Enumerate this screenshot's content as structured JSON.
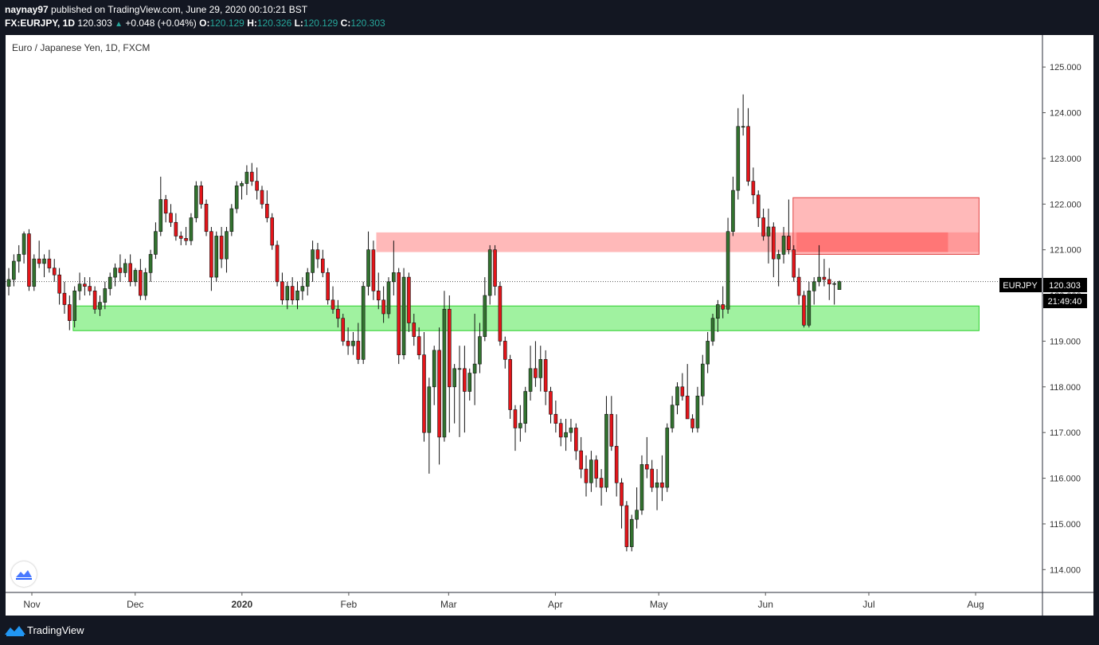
{
  "header": {
    "publisher": "naynay97",
    "published_text": "published on TradingView.com, June 29, 2020 00:10:21 BST",
    "symbol_line": "FX:EURJPY, 1D",
    "last": "120.303",
    "change": "+0.048 (+0.04%)",
    "o_label": "O:",
    "o_value": "120.129",
    "h_label": "H:",
    "h_value": "120.326",
    "l_label": "L:",
    "l_value": "120.129",
    "c_label": "C:",
    "c_value": "120.303"
  },
  "footer": {
    "brand": "TradingView"
  },
  "icons": {
    "logo": "tradingview-logo-icon",
    "corner": "tradingview-corner-icon",
    "up": "up-triangle-icon"
  },
  "colors": {
    "up": "#26a69a",
    "bull_candle": "#32722f",
    "bear_candle": "#e3151a",
    "zone_red": "#ff7070",
    "zone_green": "#8ff08f"
  },
  "chart_data": {
    "type": "candlestick",
    "title": "Euro / Japanese Yen, 1D, FXCM",
    "symbol_tag": "EURJPY",
    "last_price": 120.303,
    "countdown": "21:49:40",
    "ylim": [
      113.5,
      125.7
    ],
    "y_ticks": [
      "114.000",
      "115.000",
      "116.000",
      "117.000",
      "118.000",
      "119.000",
      "120.000",
      "121.000",
      "122.000",
      "123.000",
      "124.000",
      "125.000"
    ],
    "x_labels": [
      "Nov",
      "Dec",
      "2020",
      "Feb",
      "Mar",
      "Apr",
      "May",
      "Jun",
      "Jul",
      "Aug"
    ],
    "x_label_bold": "2020",
    "x_label_days": [
      0,
      30,
      61,
      92,
      121,
      152,
      182,
      213,
      243,
      274
    ],
    "zones": [
      {
        "kind": "supply",
        "start_day": 100,
        "end_day": 275,
        "low": 120.95,
        "high": 121.38
      },
      {
        "kind": "supply",
        "start_day": 221,
        "end_day": 275,
        "low": 120.9,
        "high": 122.14
      },
      {
        "kind": "supply-inner",
        "start_day": 222,
        "end_day": 266,
        "low": 120.95,
        "high": 121.38
      },
      {
        "kind": "demand",
        "start_day": 12,
        "end_day": 275,
        "low": 119.23,
        "high": 119.77
      }
    ],
    "candles": [
      {
        "o": 120.2,
        "h": 120.6,
        "l": 120.0,
        "c": 120.35
      },
      {
        "o": 120.35,
        "h": 120.9,
        "l": 120.2,
        "c": 120.75
      },
      {
        "o": 120.75,
        "h": 121.1,
        "l": 120.5,
        "c": 120.9
      },
      {
        "o": 120.9,
        "h": 121.4,
        "l": 120.7,
        "c": 121.35
      },
      {
        "o": 121.35,
        "h": 121.45,
        "l": 120.1,
        "c": 120.2
      },
      {
        "o": 120.2,
        "h": 120.9,
        "l": 120.1,
        "c": 120.8
      },
      {
        "o": 120.8,
        "h": 121.2,
        "l": 120.6,
        "c": 120.7
      },
      {
        "o": 120.7,
        "h": 120.9,
        "l": 120.4,
        "c": 120.8
      },
      {
        "o": 120.8,
        "h": 121.0,
        "l": 120.5,
        "c": 120.6
      },
      {
        "o": 120.6,
        "h": 120.8,
        "l": 120.3,
        "c": 120.45
      },
      {
        "o": 120.45,
        "h": 120.6,
        "l": 119.8,
        "c": 120.05
      },
      {
        "o": 120.05,
        "h": 120.3,
        "l": 119.6,
        "c": 119.8
      },
      {
        "o": 119.8,
        "h": 120.0,
        "l": 119.24,
        "c": 119.45
      },
      {
        "o": 119.45,
        "h": 120.2,
        "l": 119.3,
        "c": 120.1
      },
      {
        "o": 120.1,
        "h": 120.5,
        "l": 119.9,
        "c": 120.25
      },
      {
        "o": 120.25,
        "h": 120.4,
        "l": 120.0,
        "c": 120.2
      },
      {
        "o": 120.2,
        "h": 120.4,
        "l": 120.0,
        "c": 120.1
      },
      {
        "o": 120.1,
        "h": 120.2,
        "l": 119.6,
        "c": 119.7
      },
      {
        "o": 119.7,
        "h": 120.0,
        "l": 119.55,
        "c": 119.85
      },
      {
        "o": 119.85,
        "h": 120.3,
        "l": 119.7,
        "c": 120.15
      },
      {
        "o": 120.15,
        "h": 120.5,
        "l": 120.0,
        "c": 120.4
      },
      {
        "o": 120.4,
        "h": 120.7,
        "l": 120.2,
        "c": 120.6
      },
      {
        "o": 120.6,
        "h": 120.9,
        "l": 120.3,
        "c": 120.5
      },
      {
        "o": 120.5,
        "h": 120.8,
        "l": 120.4,
        "c": 120.7
      },
      {
        "o": 120.7,
        "h": 120.9,
        "l": 120.2,
        "c": 120.3
      },
      {
        "o": 120.3,
        "h": 120.6,
        "l": 120.2,
        "c": 120.55
      },
      {
        "o": 120.55,
        "h": 120.8,
        "l": 119.9,
        "c": 120.0
      },
      {
        "o": 120.0,
        "h": 120.6,
        "l": 119.9,
        "c": 120.5
      },
      {
        "o": 120.5,
        "h": 121.0,
        "l": 120.3,
        "c": 120.9
      },
      {
        "o": 120.9,
        "h": 121.6,
        "l": 120.8,
        "c": 121.4
      },
      {
        "o": 121.4,
        "h": 122.6,
        "l": 121.3,
        "c": 122.1
      },
      {
        "o": 122.1,
        "h": 122.2,
        "l": 121.6,
        "c": 121.8
      },
      {
        "o": 121.8,
        "h": 122.0,
        "l": 121.5,
        "c": 121.6
      },
      {
        "o": 121.6,
        "h": 121.8,
        "l": 121.2,
        "c": 121.3
      },
      {
        "o": 121.3,
        "h": 121.4,
        "l": 121.1,
        "c": 121.25
      },
      {
        "o": 121.25,
        "h": 121.5,
        "l": 121.1,
        "c": 121.2
      },
      {
        "o": 121.2,
        "h": 121.8,
        "l": 121.1,
        "c": 121.7
      },
      {
        "o": 121.7,
        "h": 122.5,
        "l": 121.6,
        "c": 122.4
      },
      {
        "o": 122.4,
        "h": 122.5,
        "l": 121.9,
        "c": 122.0
      },
      {
        "o": 122.0,
        "h": 122.1,
        "l": 121.3,
        "c": 121.4
      },
      {
        "o": 121.4,
        "h": 121.5,
        "l": 120.1,
        "c": 120.4
      },
      {
        "o": 120.4,
        "h": 121.4,
        "l": 120.3,
        "c": 121.3
      },
      {
        "o": 121.3,
        "h": 121.5,
        "l": 120.6,
        "c": 120.8
      },
      {
        "o": 120.8,
        "h": 121.5,
        "l": 120.5,
        "c": 121.4
      },
      {
        "o": 121.4,
        "h": 122.0,
        "l": 121.3,
        "c": 121.9
      },
      {
        "o": 121.9,
        "h": 122.5,
        "l": 121.8,
        "c": 122.4
      },
      {
        "o": 122.4,
        "h": 122.5,
        "l": 122.1,
        "c": 122.45
      },
      {
        "o": 122.45,
        "h": 122.85,
        "l": 122.2,
        "c": 122.7
      },
      {
        "o": 122.7,
        "h": 122.9,
        "l": 122.4,
        "c": 122.5
      },
      {
        "o": 122.5,
        "h": 122.8,
        "l": 122.1,
        "c": 122.3
      },
      {
        "o": 122.3,
        "h": 122.4,
        "l": 121.9,
        "c": 122.0
      },
      {
        "o": 122.0,
        "h": 122.3,
        "l": 121.6,
        "c": 121.7
      },
      {
        "o": 121.7,
        "h": 121.8,
        "l": 121.0,
        "c": 121.1
      },
      {
        "o": 121.1,
        "h": 121.2,
        "l": 120.2,
        "c": 120.3
      },
      {
        "o": 120.3,
        "h": 120.5,
        "l": 119.8,
        "c": 119.9
      },
      {
        "o": 119.9,
        "h": 120.3,
        "l": 119.7,
        "c": 120.2
      },
      {
        "o": 120.2,
        "h": 120.4,
        "l": 119.8,
        "c": 119.9
      },
      {
        "o": 119.9,
        "h": 120.3,
        "l": 119.7,
        "c": 120.1
      },
      {
        "o": 120.1,
        "h": 120.4,
        "l": 119.9,
        "c": 120.2
      },
      {
        "o": 120.2,
        "h": 120.6,
        "l": 120.0,
        "c": 120.5
      },
      {
        "o": 120.5,
        "h": 121.2,
        "l": 120.3,
        "c": 121.0
      },
      {
        "o": 121.0,
        "h": 121.15,
        "l": 120.6,
        "c": 120.8
      },
      {
        "o": 120.8,
        "h": 121.0,
        "l": 120.4,
        "c": 120.5
      },
      {
        "o": 120.5,
        "h": 120.6,
        "l": 119.8,
        "c": 119.9
      },
      {
        "o": 119.9,
        "h": 120.2,
        "l": 119.6,
        "c": 119.7
      },
      {
        "o": 119.7,
        "h": 119.9,
        "l": 119.3,
        "c": 119.5
      },
      {
        "o": 119.5,
        "h": 119.6,
        "l": 118.9,
        "c": 119.0
      },
      {
        "o": 119.0,
        "h": 119.3,
        "l": 118.7,
        "c": 118.9
      },
      {
        "o": 118.9,
        "h": 119.2,
        "l": 118.7,
        "c": 119.0
      },
      {
        "o": 119.0,
        "h": 119.4,
        "l": 118.5,
        "c": 118.6
      },
      {
        "o": 118.6,
        "h": 120.3,
        "l": 118.5,
        "c": 120.2
      },
      {
        "o": 120.2,
        "h": 121.4,
        "l": 120.0,
        "c": 121.0
      },
      {
        "o": 121.0,
        "h": 121.2,
        "l": 119.9,
        "c": 120.1
      },
      {
        "o": 120.1,
        "h": 120.5,
        "l": 119.7,
        "c": 119.9
      },
      {
        "o": 119.9,
        "h": 120.2,
        "l": 119.4,
        "c": 119.6
      },
      {
        "o": 119.6,
        "h": 120.4,
        "l": 119.5,
        "c": 120.3
      },
      {
        "o": 120.3,
        "h": 121.2,
        "l": 120.0,
        "c": 120.5
      },
      {
        "o": 120.5,
        "h": 120.6,
        "l": 118.5,
        "c": 118.7
      },
      {
        "o": 118.7,
        "h": 120.6,
        "l": 118.6,
        "c": 120.4
      },
      {
        "o": 120.4,
        "h": 120.5,
        "l": 119.2,
        "c": 119.4
      },
      {
        "o": 119.4,
        "h": 119.6,
        "l": 118.9,
        "c": 119.1
      },
      {
        "o": 119.1,
        "h": 119.3,
        "l": 118.6,
        "c": 118.7
      },
      {
        "o": 118.7,
        "h": 119.2,
        "l": 116.8,
        "c": 117.0
      },
      {
        "o": 117.0,
        "h": 118.2,
        "l": 116.1,
        "c": 118.0
      },
      {
        "o": 118.0,
        "h": 118.9,
        "l": 117.6,
        "c": 118.8
      },
      {
        "o": 118.8,
        "h": 119.3,
        "l": 116.3,
        "c": 116.9
      },
      {
        "o": 116.9,
        "h": 120.1,
        "l": 116.8,
        "c": 119.7
      },
      {
        "o": 119.7,
        "h": 120.0,
        "l": 117.0,
        "c": 118.0
      },
      {
        "o": 118.0,
        "h": 118.5,
        "l": 117.2,
        "c": 118.4
      },
      {
        "o": 118.4,
        "h": 118.9,
        "l": 116.9,
        "c": 118.4
      },
      {
        "o": 118.4,
        "h": 118.9,
        "l": 117.0,
        "c": 117.9
      },
      {
        "o": 117.9,
        "h": 118.4,
        "l": 117.7,
        "c": 118.3
      },
      {
        "o": 118.3,
        "h": 119.6,
        "l": 117.6,
        "c": 118.5
      },
      {
        "o": 118.5,
        "h": 119.4,
        "l": 118.3,
        "c": 119.1
      },
      {
        "o": 119.1,
        "h": 120.4,
        "l": 119.0,
        "c": 120.0
      },
      {
        "o": 120.0,
        "h": 121.1,
        "l": 119.8,
        "c": 121.0
      },
      {
        "o": 121.0,
        "h": 121.1,
        "l": 120.0,
        "c": 120.2
      },
      {
        "o": 120.2,
        "h": 120.3,
        "l": 118.9,
        "c": 119.0
      },
      {
        "o": 119.0,
        "h": 119.1,
        "l": 118.4,
        "c": 118.6
      },
      {
        "o": 118.6,
        "h": 118.7,
        "l": 117.3,
        "c": 117.5
      },
      {
        "o": 117.5,
        "h": 117.6,
        "l": 116.6,
        "c": 117.1
      },
      {
        "o": 117.1,
        "h": 117.6,
        "l": 116.8,
        "c": 117.2
      },
      {
        "o": 117.2,
        "h": 118.0,
        "l": 117.0,
        "c": 117.9
      },
      {
        "o": 117.9,
        "h": 118.9,
        "l": 117.7,
        "c": 118.4
      },
      {
        "o": 118.4,
        "h": 119.0,
        "l": 118.0,
        "c": 118.2
      },
      {
        "o": 118.2,
        "h": 118.9,
        "l": 117.9,
        "c": 118.6
      },
      {
        "o": 118.6,
        "h": 118.8,
        "l": 117.6,
        "c": 117.9
      },
      {
        "o": 117.9,
        "h": 118.0,
        "l": 117.2,
        "c": 117.4
      },
      {
        "o": 117.4,
        "h": 117.7,
        "l": 117.0,
        "c": 117.2
      },
      {
        "o": 117.2,
        "h": 117.3,
        "l": 116.7,
        "c": 116.9
      },
      {
        "o": 116.9,
        "h": 117.3,
        "l": 116.6,
        "c": 117.0
      },
      {
        "o": 117.0,
        "h": 117.3,
        "l": 116.8,
        "c": 117.1
      },
      {
        "o": 117.1,
        "h": 117.2,
        "l": 116.4,
        "c": 116.6
      },
      {
        "o": 116.6,
        "h": 116.9,
        "l": 116.0,
        "c": 116.2
      },
      {
        "o": 116.2,
        "h": 116.5,
        "l": 115.6,
        "c": 115.9
      },
      {
        "o": 115.9,
        "h": 116.6,
        "l": 115.7,
        "c": 116.4
      },
      {
        "o": 116.4,
        "h": 116.5,
        "l": 115.8,
        "c": 116.0
      },
      {
        "o": 116.0,
        "h": 116.2,
        "l": 115.4,
        "c": 115.8
      },
      {
        "o": 115.8,
        "h": 117.8,
        "l": 115.7,
        "c": 117.4
      },
      {
        "o": 117.4,
        "h": 117.8,
        "l": 116.6,
        "c": 116.7
      },
      {
        "o": 116.7,
        "h": 117.4,
        "l": 115.6,
        "c": 115.9
      },
      {
        "o": 115.9,
        "h": 116.0,
        "l": 114.9,
        "c": 115.4
      },
      {
        "o": 115.4,
        "h": 115.5,
        "l": 114.4,
        "c": 114.5
      },
      {
        "o": 114.5,
        "h": 115.2,
        "l": 114.4,
        "c": 115.1
      },
      {
        "o": 115.1,
        "h": 115.8,
        "l": 114.9,
        "c": 115.3
      },
      {
        "o": 115.3,
        "h": 116.5,
        "l": 115.2,
        "c": 116.3
      },
      {
        "o": 116.3,
        "h": 116.9,
        "l": 116.0,
        "c": 116.2
      },
      {
        "o": 116.2,
        "h": 116.4,
        "l": 115.7,
        "c": 115.8
      },
      {
        "o": 115.8,
        "h": 116.2,
        "l": 115.3,
        "c": 115.9
      },
      {
        "o": 115.9,
        "h": 116.5,
        "l": 115.5,
        "c": 115.8
      },
      {
        "o": 115.8,
        "h": 117.2,
        "l": 115.7,
        "c": 117.1
      },
      {
        "o": 117.1,
        "h": 117.8,
        "l": 117.0,
        "c": 117.6
      },
      {
        "o": 117.6,
        "h": 118.1,
        "l": 117.4,
        "c": 118.0
      },
      {
        "o": 118.0,
        "h": 118.3,
        "l": 117.7,
        "c": 117.8
      },
      {
        "o": 117.8,
        "h": 118.5,
        "l": 117.3,
        "c": 117.3
      },
      {
        "o": 117.3,
        "h": 117.4,
        "l": 117.0,
        "c": 117.1
      },
      {
        "o": 117.1,
        "h": 118.0,
        "l": 117.0,
        "c": 117.8
      },
      {
        "o": 117.8,
        "h": 118.7,
        "l": 117.6,
        "c": 118.5
      },
      {
        "o": 118.5,
        "h": 119.2,
        "l": 118.3,
        "c": 119.0
      },
      {
        "o": 119.0,
        "h": 119.6,
        "l": 118.9,
        "c": 119.5
      },
      {
        "o": 119.5,
        "h": 119.9,
        "l": 119.2,
        "c": 119.8
      },
      {
        "o": 119.8,
        "h": 120.2,
        "l": 119.5,
        "c": 119.7
      },
      {
        "o": 119.7,
        "h": 121.7,
        "l": 119.6,
        "c": 121.4
      },
      {
        "o": 121.4,
        "h": 122.6,
        "l": 121.3,
        "c": 122.3
      },
      {
        "o": 122.3,
        "h": 124.1,
        "l": 122.1,
        "c": 123.7
      },
      {
        "o": 123.7,
        "h": 124.4,
        "l": 123.5,
        "c": 123.7
      },
      {
        "o": 123.7,
        "h": 124.1,
        "l": 122.4,
        "c": 122.5
      },
      {
        "o": 122.5,
        "h": 122.8,
        "l": 122.0,
        "c": 122.2
      },
      {
        "o": 122.2,
        "h": 122.3,
        "l": 121.5,
        "c": 121.7
      },
      {
        "o": 121.7,
        "h": 121.9,
        "l": 121.2,
        "c": 121.3
      },
      {
        "o": 121.3,
        "h": 121.9,
        "l": 120.7,
        "c": 121.5
      },
      {
        "o": 121.5,
        "h": 121.6,
        "l": 120.4,
        "c": 120.8
      },
      {
        "o": 120.8,
        "h": 121.0,
        "l": 120.2,
        "c": 120.9
      },
      {
        "o": 120.9,
        "h": 121.5,
        "l": 120.7,
        "c": 121.3
      },
      {
        "o": 121.3,
        "h": 122.1,
        "l": 120.9,
        "c": 121.0
      },
      {
        "o": 121.0,
        "h": 121.1,
        "l": 120.3,
        "c": 120.4
      },
      {
        "o": 120.4,
        "h": 120.6,
        "l": 119.8,
        "c": 120.0
      },
      {
        "o": 120.0,
        "h": 120.1,
        "l": 119.3,
        "c": 119.35
      },
      {
        "o": 119.35,
        "h": 120.3,
        "l": 119.3,
        "c": 120.1
      },
      {
        "o": 120.1,
        "h": 120.4,
        "l": 119.8,
        "c": 120.3
      },
      {
        "o": 120.3,
        "h": 121.1,
        "l": 120.2,
        "c": 120.4
      },
      {
        "o": 120.4,
        "h": 120.8,
        "l": 120.2,
        "c": 120.35
      },
      {
        "o": 120.35,
        "h": 120.6,
        "l": 119.9,
        "c": 120.25
      },
      {
        "o": 120.25,
        "h": 120.3,
        "l": 119.8,
        "c": 120.26
      },
      {
        "o": 120.129,
        "h": 120.326,
        "l": 120.129,
        "c": 120.303
      }
    ]
  }
}
